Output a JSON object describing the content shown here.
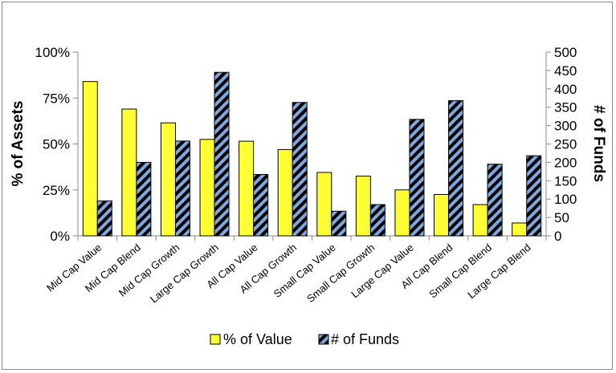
{
  "chart_data": {
    "type": "bar",
    "categories": [
      "Mid Cap Value",
      "Mid Cap Blend",
      "Mid Cap Growth",
      "Large Cap Growth",
      "All Cap Value",
      "All Cap Growth",
      "Small Cap Value",
      "Small Cap Growth",
      "Large Cap Value",
      "All Cap Blend",
      "Small Cap Blend",
      "Large Cap Blend"
    ],
    "series": [
      {
        "name": "% of Value",
        "axis": "left",
        "color": "#FFFF33",
        "values": [
          84,
          69,
          61.5,
          52.5,
          51.5,
          47,
          34.5,
          32.5,
          25,
          22.5,
          17,
          7
        ]
      },
      {
        "name": "# of Funds",
        "axis": "right",
        "color": "#7FA7E0",
        "values": [
          95,
          200,
          258,
          445,
          167,
          363,
          67,
          85,
          317,
          368,
          195,
          218
        ]
      }
    ],
    "ylabel": "% of Assets",
    "ylabel_right": "# of Funds",
    "ylim": [
      0,
      100
    ],
    "ylim_right": [
      0,
      500
    ],
    "yticks": [
      "0%",
      "25%",
      "50%",
      "75%",
      "100%"
    ],
    "yticks_right": [
      "0",
      "50",
      "100",
      "150",
      "200",
      "250",
      "300",
      "350",
      "400",
      "450",
      "500"
    ],
    "legend": {
      "position": "bottom",
      "entries": [
        "% of Value",
        "# of Funds"
      ]
    },
    "grid": false
  }
}
